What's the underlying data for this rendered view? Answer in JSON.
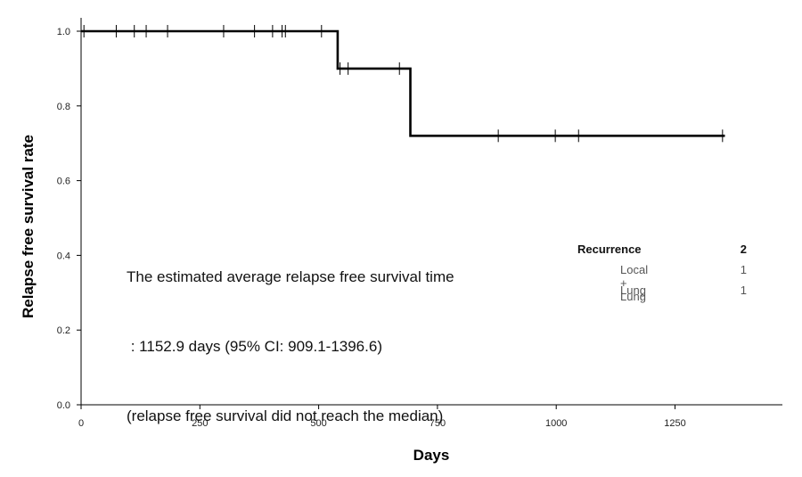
{
  "chart_data": {
    "type": "line",
    "subtype": "kaplan-meier",
    "xlabel": "Days",
    "ylabel": "Relapse free survival rate",
    "xlim": [
      0,
      1450
    ],
    "ylim": [
      0,
      1.0
    ],
    "x_ticks": [
      0,
      250,
      500,
      750,
      1000,
      1250
    ],
    "y_ticks": [
      0.0,
      0.2,
      0.4,
      0.6,
      0.8,
      1.0
    ],
    "x_tick_labels": [
      "0",
      "250",
      "500",
      "750",
      "1000",
      "1250"
    ],
    "y_tick_labels": [
      "0.0",
      "0.2",
      "0.4",
      "0.6",
      "0.8",
      "1.0"
    ],
    "series": [
      {
        "steps": [
          {
            "x": 0,
            "y": 1.0
          },
          {
            "x": 540,
            "y": 0.9
          },
          {
            "x": 693,
            "y": 0.72
          },
          {
            "x": 1355,
            "y": 0.72
          }
        ],
        "censored": [
          {
            "x": 6,
            "y": 1.0
          },
          {
            "x": 74,
            "y": 1.0
          },
          {
            "x": 112,
            "y": 1.0
          },
          {
            "x": 137,
            "y": 1.0
          },
          {
            "x": 182,
            "y": 1.0
          },
          {
            "x": 300,
            "y": 1.0
          },
          {
            "x": 365,
            "y": 1.0
          },
          {
            "x": 403,
            "y": 1.0
          },
          {
            "x": 423,
            "y": 1.0
          },
          {
            "x": 430,
            "y": 1.0
          },
          {
            "x": 506,
            "y": 1.0
          },
          {
            "x": 545,
            "y": 0.9
          },
          {
            "x": 562,
            "y": 0.9
          },
          {
            "x": 670,
            "y": 0.9
          },
          {
            "x": 878,
            "y": 0.72
          },
          {
            "x": 998,
            "y": 0.72
          },
          {
            "x": 1047,
            "y": 0.72
          },
          {
            "x": 1350,
            "y": 0.72
          }
        ]
      }
    ],
    "grid": false,
    "annotation_lines": [
      "The estimated average relapse free survival time",
      " : 1152.9 days (95% CI: 909.1-1396.6)",
      "(relapse free survival did not reach the median)"
    ],
    "legend": {
      "title": "Recurrence",
      "title_count": "2",
      "items": [
        {
          "label": "Local + Lung",
          "count": "1"
        },
        {
          "label": "Lung",
          "count": "1"
        }
      ]
    }
  }
}
